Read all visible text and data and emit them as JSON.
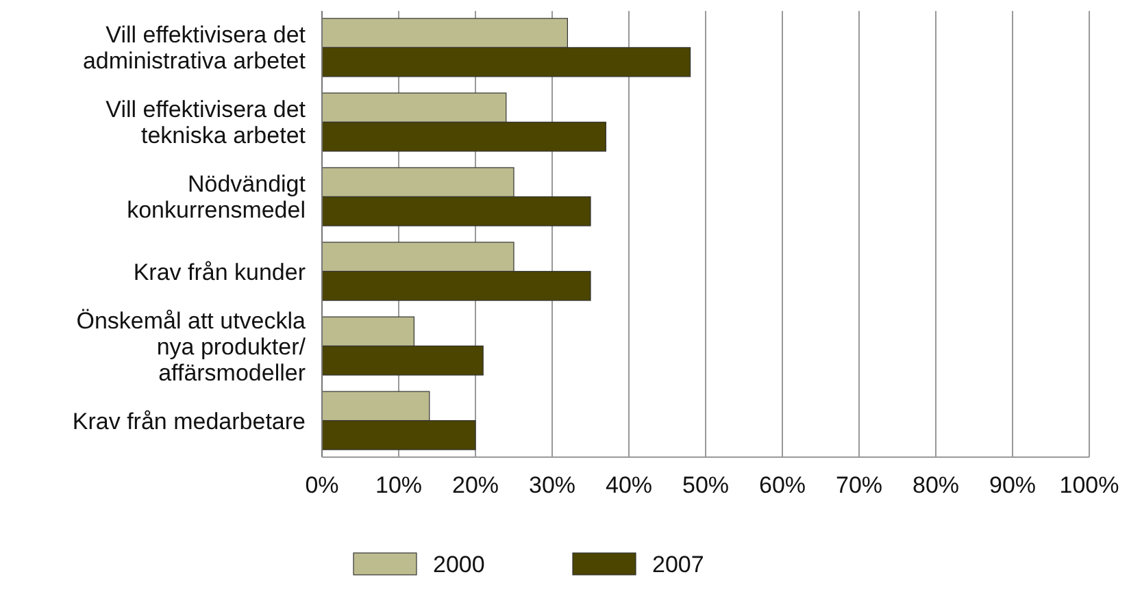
{
  "chart_data": {
    "type": "bar",
    "orientation": "horizontal",
    "categories": [
      "Vill effektivisera det administrativa arbetet",
      "Vill effektivisera det tekniska arbetet",
      "Nödvändigt konkurrensmedel",
      "Krav från kunder",
      "Önskemål att utveckla nya produkter/affärsmodeller",
      "Krav från medarbetare"
    ],
    "series": [
      {
        "name": "2000",
        "color": "#bdbc8f",
        "values": [
          32,
          24,
          25,
          25,
          12,
          14
        ]
      },
      {
        "name": "2007",
        "color": "#4b4500",
        "values": [
          48,
          37,
          35,
          35,
          21,
          20
        ]
      }
    ],
    "xlim": [
      0,
      100
    ],
    "xticks": [
      {
        "value": 0,
        "label": "0%"
      },
      {
        "value": 10,
        "label": "10%"
      },
      {
        "value": 20,
        "label": "20%"
      },
      {
        "value": 30,
        "label": "30%"
      },
      {
        "value": 40,
        "label": "40%"
      },
      {
        "value": 50,
        "label": "50%"
      },
      {
        "value": 60,
        "label": "60%"
      },
      {
        "value": 70,
        "label": "70%"
      },
      {
        "value": 80,
        "label": "80%"
      },
      {
        "value": 90,
        "label": "90%"
      },
      {
        "value": 100,
        "label": "100%"
      }
    ],
    "grid": "x",
    "legend": "bottom"
  }
}
